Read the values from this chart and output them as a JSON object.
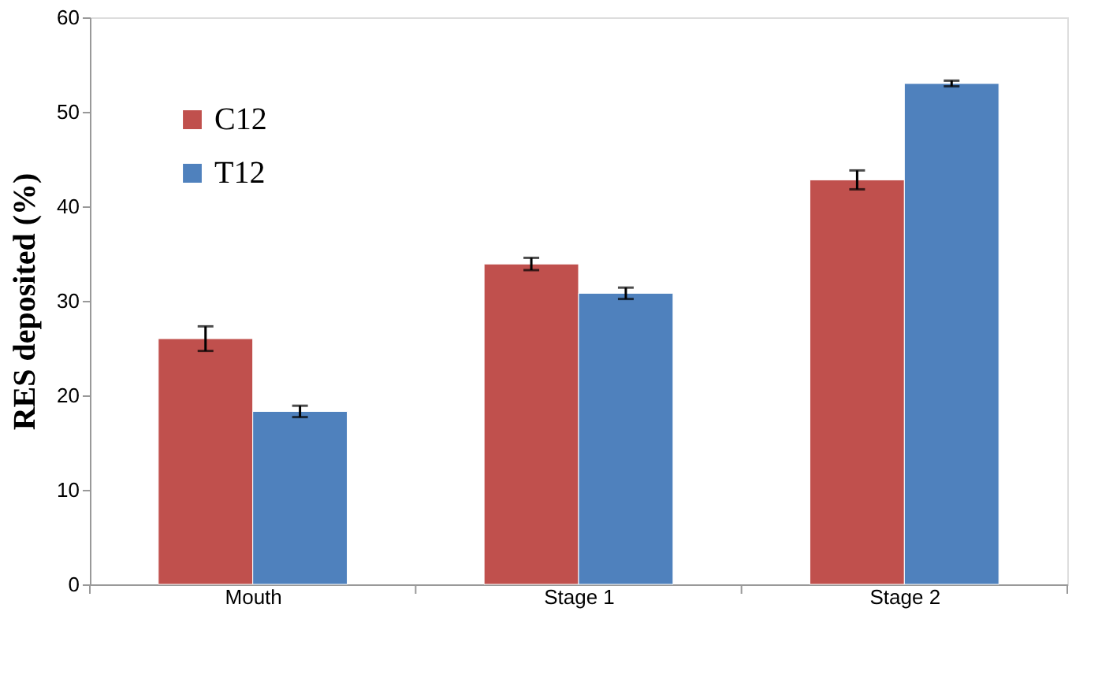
{
  "chart_data": {
    "type": "bar",
    "ylabel": "RES deposited (%)",
    "categories": [
      "Mouth",
      "Stage 1",
      "Stage 2"
    ],
    "series": [
      {
        "name": "C12",
        "color": "#c0504d",
        "values": [
          26.0,
          33.9,
          42.8
        ],
        "errors": [
          1.3,
          0.65,
          1.0
        ]
      },
      {
        "name": "T12",
        "color": "#4f81bd",
        "values": [
          18.3,
          30.8,
          53.0
        ],
        "errors": [
          0.6,
          0.6,
          0.3
        ]
      }
    ],
    "ylim": [
      0,
      60
    ],
    "yticks": [
      0,
      10,
      20,
      30,
      40,
      50,
      60
    ],
    "grid": false,
    "legend": "top left"
  }
}
